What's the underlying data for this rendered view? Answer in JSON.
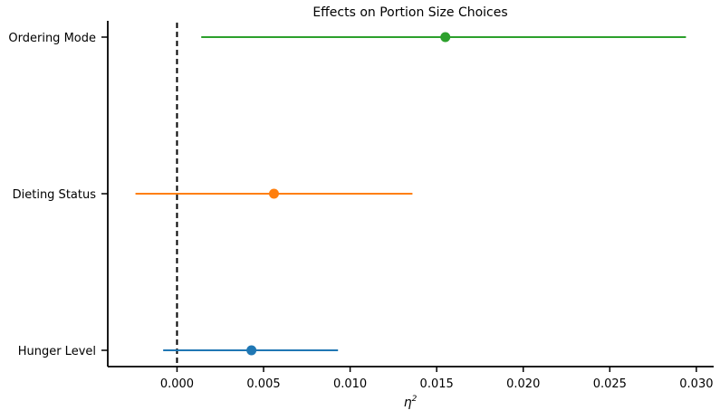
{
  "chart_data": {
    "type": "scatter",
    "subtype": "forest-plot",
    "title": "Effects on Portion Size Choices",
    "xlabel": "η",
    "xlabel_superscript": "2",
    "ylabel": "",
    "xlim": [
      -0.004,
      0.031
    ],
    "xticks": [
      0.0,
      0.005,
      0.01,
      0.015,
      0.02,
      0.025,
      0.03
    ],
    "xtick_labels": [
      "0.000",
      "0.005",
      "0.010",
      "0.015",
      "0.020",
      "0.025",
      "0.030"
    ],
    "reference_line": {
      "x": 0.0,
      "style": "dashed",
      "color": "#000000"
    },
    "grid": false,
    "categories": [
      "Ordering Mode",
      "Dieting Status",
      "Hunger Level"
    ],
    "points": [
      {
        "category": "Ordering Mode",
        "estimate": 0.0155,
        "ci": [
          0.0014,
          0.0294
        ],
        "color": "#2ca02c"
      },
      {
        "category": "Dieting Status",
        "estimate": 0.0056,
        "ci": [
          -0.0024,
          0.0136
        ],
        "color": "#ff7f0e"
      },
      {
        "category": "Hunger Level",
        "estimate": 0.0043,
        "ci": [
          -0.0008,
          0.0093
        ],
        "color": "#1f77b4"
      }
    ]
  }
}
